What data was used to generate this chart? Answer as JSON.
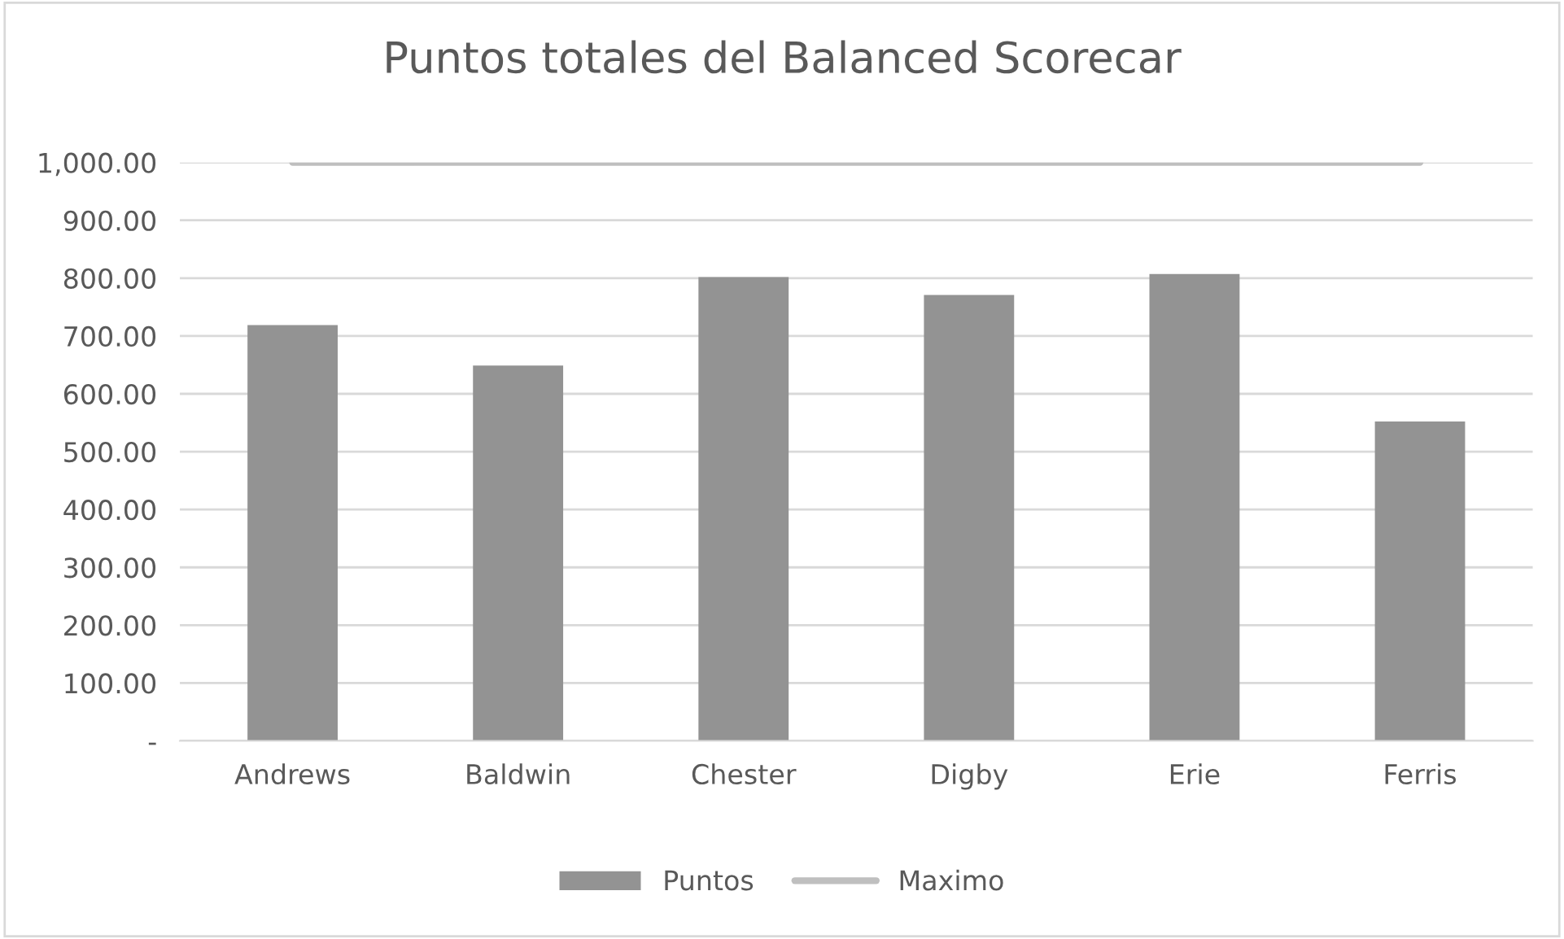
{
  "chart_data": {
    "type": "bar",
    "title": "Puntos totales del Balanced Scorecar",
    "categories": [
      "Andrews",
      "Baldwin",
      "Chester",
      "Digby",
      "Erie",
      "Ferris"
    ],
    "series": [
      {
        "name": "Puntos",
        "color": "#939393",
        "values": [
          719,
          649,
          802,
          771,
          807,
          552
        ]
      },
      {
        "name": "Maximo",
        "type": "line",
        "color": "#bfbfbf",
        "values": [
          1000,
          1000,
          1000,
          1000,
          1000,
          1000
        ]
      }
    ],
    "ylim": [
      0,
      1000
    ],
    "yticks": [
      {
        "value": 0,
        "label": "-"
      },
      {
        "value": 100,
        "label": "100.00"
      },
      {
        "value": 200,
        "label": "200.00"
      },
      {
        "value": 300,
        "label": "300.00"
      },
      {
        "value": 400,
        "label": "400.00"
      },
      {
        "value": 500,
        "label": "500.00"
      },
      {
        "value": 600,
        "label": "600.00"
      },
      {
        "value": 700,
        "label": "700.00"
      },
      {
        "value": 800,
        "label": "800.00"
      },
      {
        "value": 900,
        "label": "900.00"
      },
      {
        "value": 1000,
        "label": "1,000.00"
      }
    ],
    "grid": "y",
    "legend": "bottom",
    "marker": "none",
    "line_style": "solid"
  }
}
